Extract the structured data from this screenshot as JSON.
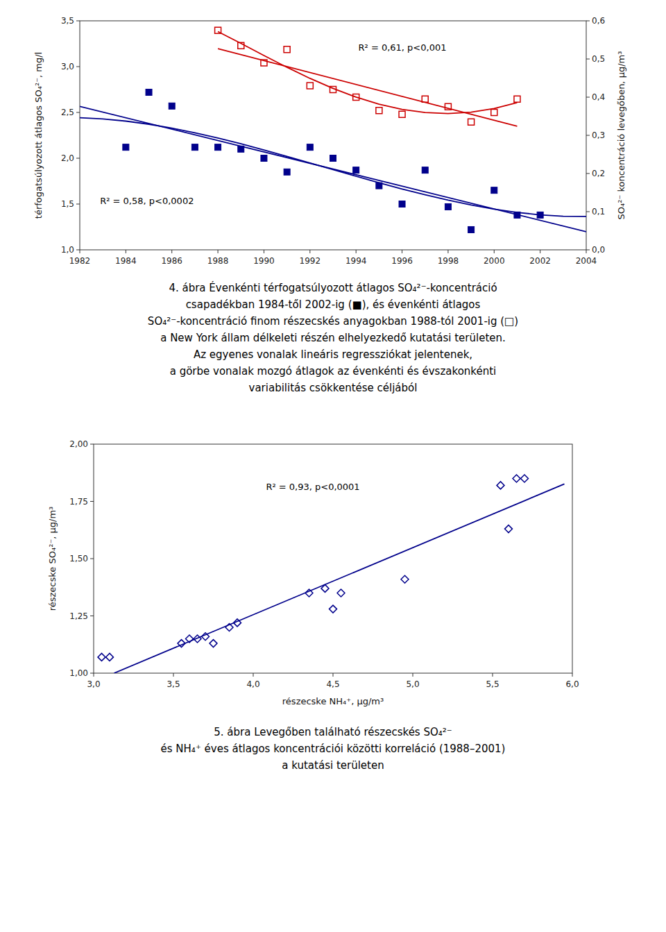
{
  "chart_data": [
    {
      "type": "scatter",
      "ylabel": "térfogatsúlyozott átlagos SO₄²⁻, mg/l",
      "y2label": "SO₄²⁻ koncentráció levegőben, μg/m³",
      "xlim": [
        1982,
        2004
      ],
      "xticks": [
        1982,
        1984,
        1986,
        1988,
        1990,
        1992,
        1994,
        1996,
        1998,
        2000,
        2002,
        2004
      ],
      "ylim": [
        1.0,
        3.5
      ],
      "yticks": [
        {
          "value": 1.0,
          "label": "1,0"
        },
        {
          "value": 1.5,
          "label": "1,5"
        },
        {
          "value": 2.0,
          "label": "2,0"
        },
        {
          "value": 2.5,
          "label": "2,5"
        },
        {
          "value": 3.0,
          "label": "3,0"
        },
        {
          "value": 3.5,
          "label": "3,5"
        }
      ],
      "y2lim": [
        0.0,
        0.6
      ],
      "y2ticks": [
        {
          "value": 0.0,
          "label": "0,0"
        },
        {
          "value": 0.1,
          "label": "0,1"
        },
        {
          "value": 0.2,
          "label": "0,2"
        },
        {
          "value": 0.3,
          "label": "0,3"
        },
        {
          "value": 0.4,
          "label": "0,4"
        },
        {
          "value": 0.5,
          "label": "0,5"
        },
        {
          "value": 0.6,
          "label": "0,6"
        }
      ],
      "grid": false,
      "annotations": [
        "R² = 0,61, p<0,001",
        "R² = 0,58, p<0,0002"
      ],
      "caption": [
        "4. ábra Évenkénti térfogatsúlyozott átlagos SO₄²⁻-koncentráció",
        "csapadékban 1984-től 2002-ig (■), és évenkénti átlagos",
        "SO₄²⁻-koncentráció finom részecskés anyagokban 1988-tól 2001-ig (□)",
        "a New York állam délkeleti részén elhelyezkedő kutatási területen.",
        "Az egyenes vonalak lineáris regressziókat jelentenek,",
        "a görbe vonalak mozgó átlagok az évenkénti és évszakonkénti",
        "variabilitás csökkentése céljából"
      ],
      "series": [
        {
          "type": "scatter",
          "marker": "square",
          "color": "#00008B",
          "x": [
            1984,
            1985,
            1986,
            1987,
            1988,
            1989,
            1990,
            1991,
            1992,
            1993,
            1994,
            1995,
            1996,
            1997,
            1998,
            1999,
            2000,
            2001,
            2002
          ],
          "values": [
            2.12,
            2.72,
            2.57,
            2.12,
            2.12,
            2.1,
            2.0,
            1.85,
            2.12,
            2.0,
            1.87,
            1.7,
            1.5,
            1.87,
            1.47,
            1.22,
            1.65,
            1.38,
            1.38
          ]
        },
        {
          "type": "scatter",
          "marker": "open-square",
          "color": "#CC0000",
          "axis": "y2",
          "x": [
            1988,
            1989,
            1990,
            1991,
            1992,
            1993,
            1994,
            1995,
            1996,
            1997,
            1998,
            1999,
            2000,
            2001
          ],
          "values": [
            0.575,
            0.535,
            0.49,
            0.525,
            0.43,
            0.42,
            0.4,
            0.365,
            0.355,
            0.395,
            0.375,
            0.335,
            0.36,
            0.395
          ]
        },
        {
          "type": "line",
          "line_style": "solid",
          "color": "#00008B",
          "x": [
            1982,
            2004
          ],
          "values": [
            2.566,
            1.1982
          ]
        },
        {
          "type": "line",
          "line_style": "solid",
          "color": "#CC0000",
          "axis": "y2",
          "x": [
            1988,
            2001
          ],
          "values": [
            0.527,
            0.3237
          ]
        },
        {
          "type": "line",
          "line_style": "solid",
          "color": "#00008B",
          "x": [
            1982,
            1983,
            1984,
            1985,
            1986,
            1987,
            1988,
            1989,
            1990,
            1991,
            1992,
            1993,
            1994,
            1995,
            1996,
            1997,
            1998,
            1999,
            2000,
            2001,
            2002,
            2003,
            2004
          ],
          "values": [
            2.4416,
            2.4291,
            2.4052,
            2.3712,
            2.3282,
            2.2775,
            2.2201,
            2.1573,
            2.0902,
            2.0201,
            1.9481,
            1.8753,
            1.803,
            1.7323,
            1.6644,
            1.6006,
            1.5418,
            1.4895,
            1.4446,
            1.4084,
            1.3822,
            1.3669,
            1.3639
          ]
        },
        {
          "type": "line",
          "line_style": "solid",
          "color": "#CC0000",
          "axis": "y2",
          "x": [
            1988,
            1989,
            1990,
            1991,
            1992,
            1993,
            1994,
            1995,
            1996,
            1997,
            1998,
            1999,
            2000,
            2001
          ],
          "values": [
            0.5718,
            0.5408,
            0.5092,
            0.4783,
            0.4492,
            0.4229,
            0.4001,
            0.3816,
            0.368,
            0.3597,
            0.3572,
            0.3606,
            0.3701,
            0.3855
          ]
        }
      ]
    },
    {
      "type": "scatter",
      "xlabel": "részecske NH₄⁺, μg/m³",
      "ylabel": "részecske SO₄²⁻, μg/m³",
      "xlim": [
        3.0,
        6.0
      ],
      "xticks": [
        {
          "value": 3.0,
          "label": "3,0"
        },
        {
          "value": 3.5,
          "label": "3,5"
        },
        {
          "value": 4.0,
          "label": "4,0"
        },
        {
          "value": 4.5,
          "label": "4,5"
        },
        {
          "value": 5.0,
          "label": "5,0"
        },
        {
          "value": 5.5,
          "label": "5,5"
        },
        {
          "value": 6.0,
          "label": "6,0"
        }
      ],
      "ylim": [
        1.0,
        2.0
      ],
      "yticks": [
        {
          "value": 1.0,
          "label": "1,00"
        },
        {
          "value": 1.25,
          "label": "1,25"
        },
        {
          "value": 1.5,
          "label": "1,50"
        },
        {
          "value": 1.75,
          "label": "1,75"
        },
        {
          "value": 2.0,
          "label": "2,00"
        }
      ],
      "grid": false,
      "annotations": [
        "R² = 0,93, p<0,0001"
      ],
      "caption": [
        "5. ábra Levegőben található részecskés SO₄²⁻",
        "és NH₄⁺ éves átlagos koncentrációi közötti korreláció (1988–2001)",
        "a kutatási területen"
      ],
      "series": [
        {
          "type": "scatter",
          "marker": "open-diamond",
          "color": "#00008B",
          "x": [
            3.05,
            3.1,
            3.55,
            3.6,
            3.65,
            3.7,
            3.75,
            3.85,
            3.9,
            4.35,
            4.45,
            4.5,
            4.55,
            4.95,
            5.55,
            5.6,
            5.65,
            5.7
          ],
          "values": [
            1.07,
            1.07,
            1.13,
            1.15,
            1.15,
            1.16,
            1.13,
            1.2,
            1.22,
            1.35,
            1.37,
            1.28,
            1.35,
            1.41,
            1.82,
            1.63,
            1.85,
            1.85
          ]
        },
        {
          "type": "line",
          "line_style": "solid",
          "color": "#00008B",
          "x": [
            3.1278,
            5.95
          ],
          "values": [
            1.0,
            1.826
          ]
        }
      ]
    }
  ]
}
